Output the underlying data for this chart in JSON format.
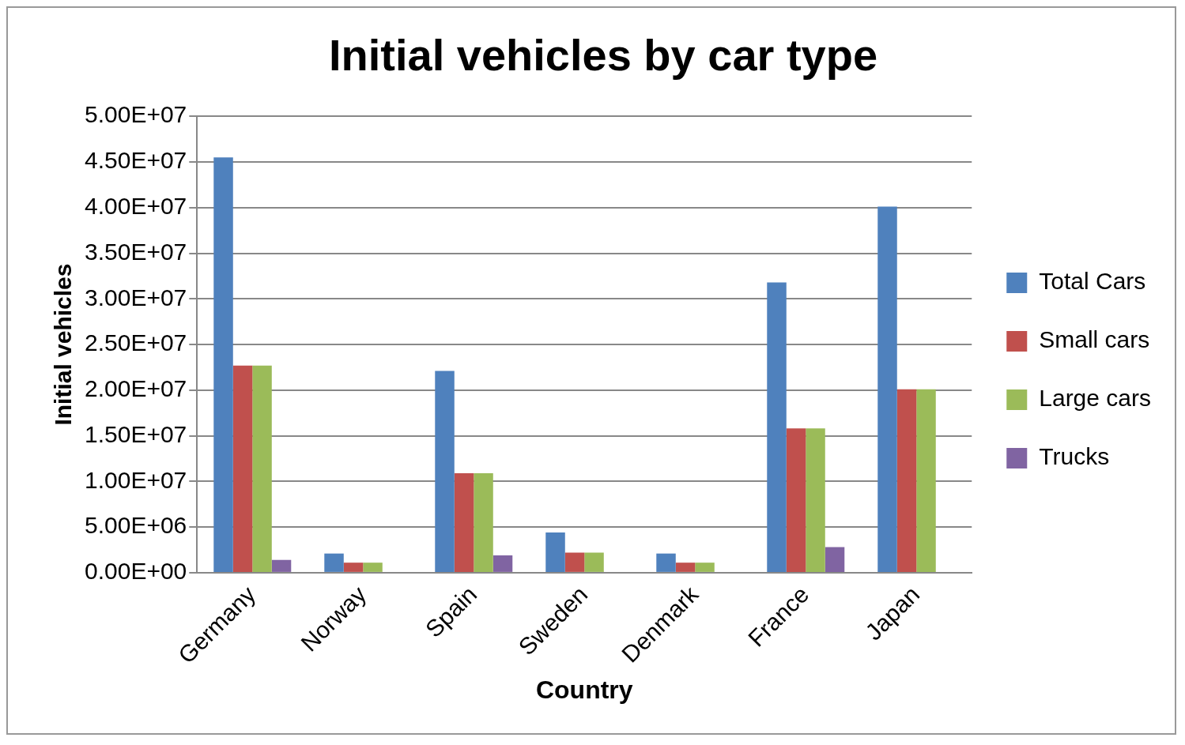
{
  "chart_data": {
    "type": "bar",
    "title": "Initial vehicles by car type",
    "xlabel": "Country",
    "ylabel": "Initial vehicles",
    "categories": [
      "Germany",
      "Norway",
      "Spain",
      "Sweden",
      "Denmark",
      "France",
      "Japan"
    ],
    "series": [
      {
        "name": "Total Cars",
        "color": "#4f81bd",
        "values": [
          45500000,
          2100000,
          22100000,
          4400000,
          2100000,
          31800000,
          40100000
        ]
      },
      {
        "name": "Small cars",
        "color": "#c0504d",
        "values": [
          22700000,
          1100000,
          10900000,
          2200000,
          1100000,
          15800000,
          20100000
        ]
      },
      {
        "name": "Large cars",
        "color": "#9bbb59",
        "values": [
          22700000,
          1100000,
          10900000,
          2200000,
          1100000,
          15800000,
          20100000
        ]
      },
      {
        "name": "Trucks",
        "color": "#8064a2",
        "values": [
          1400000,
          0,
          1900000,
          0,
          0,
          2800000,
          0
        ]
      }
    ],
    "ylim": [
      0,
      50000000
    ],
    "yticks": [
      {
        "value": 0,
        "label": "0.00E+00"
      },
      {
        "value": 5000000,
        "label": "5.00E+06"
      },
      {
        "value": 10000000,
        "label": "1.00E+07"
      },
      {
        "value": 15000000,
        "label": "1.50E+07"
      },
      {
        "value": 20000000,
        "label": "2.00E+07"
      },
      {
        "value": 25000000,
        "label": "2.50E+07"
      },
      {
        "value": 30000000,
        "label": "3.00E+07"
      },
      {
        "value": 35000000,
        "label": "3.50E+07"
      },
      {
        "value": 40000000,
        "label": "4.00E+07"
      },
      {
        "value": 45000000,
        "label": "4.50E+07"
      },
      {
        "value": 50000000,
        "label": "5.00E+07"
      }
    ],
    "grid": "y",
    "legend": "right"
  }
}
